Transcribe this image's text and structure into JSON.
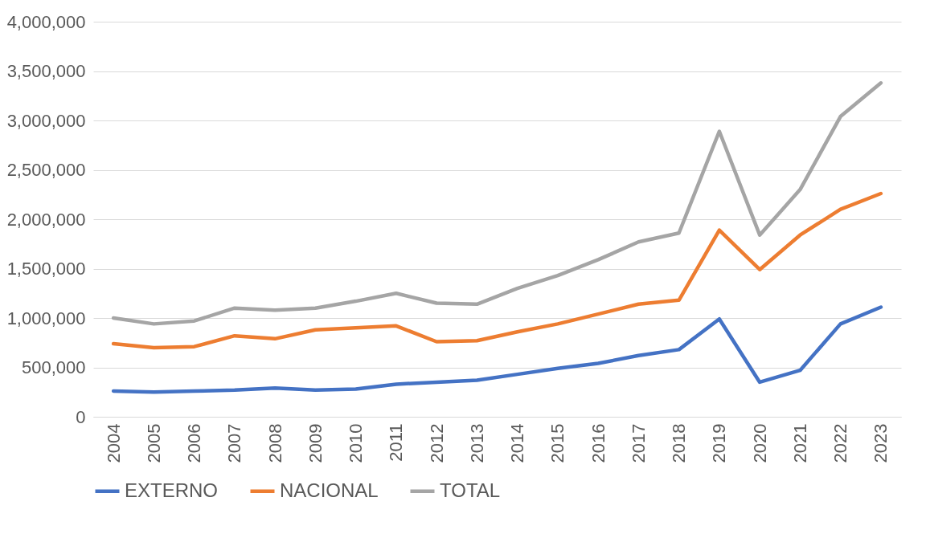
{
  "chart_data": {
    "type": "line",
    "categories": [
      "2004",
      "2005",
      "2006",
      "2007",
      "2008",
      "2009",
      "2010",
      "2011",
      "2012",
      "2013",
      "2014",
      "2015",
      "2016",
      "2017",
      "2018",
      "2019",
      "2020",
      "2021",
      "2022",
      "2023"
    ],
    "series": [
      {
        "name": "EXTERNO",
        "color": "#4472c4",
        "values": [
          260000,
          250000,
          260000,
          270000,
          290000,
          270000,
          280000,
          330000,
          350000,
          370000,
          430000,
          490000,
          540000,
          620000,
          680000,
          990000,
          350000,
          470000,
          940000,
          1110000
        ]
      },
      {
        "name": "NACIONAL",
        "color": "#ed7d31",
        "values": [
          740000,
          700000,
          710000,
          820000,
          790000,
          880000,
          900000,
          920000,
          760000,
          770000,
          860000,
          940000,
          1040000,
          1140000,
          1180000,
          1890000,
          1490000,
          1840000,
          2100000,
          2260000
        ]
      },
      {
        "name": "TOTAL",
        "color": "#a5a5a5",
        "values": [
          1000000,
          940000,
          970000,
          1100000,
          1080000,
          1100000,
          1170000,
          1250000,
          1150000,
          1140000,
          1300000,
          1430000,
          1590000,
          1770000,
          1860000,
          2890000,
          1840000,
          2300000,
          3040000,
          3380000
        ]
      }
    ],
    "ylim": [
      0,
      4000000
    ],
    "yticks": [
      0,
      {
        "value": 500000,
        "label": "500,000"
      },
      {
        "value": 1000000,
        "label": "1,000,000"
      },
      {
        "value": 1500000,
        "label": "1,500,000"
      },
      {
        "value": 2000000,
        "label": "2,000,000"
      },
      {
        "value": 2500000,
        "label": "2,500,000"
      },
      {
        "value": 3000000,
        "label": "3,000,000"
      },
      {
        "value": 3500000,
        "label": "3,500,000"
      },
      {
        "value": 4000000,
        "label": "4,000,000"
      }
    ],
    "grid": "y",
    "legend": "bottom"
  }
}
